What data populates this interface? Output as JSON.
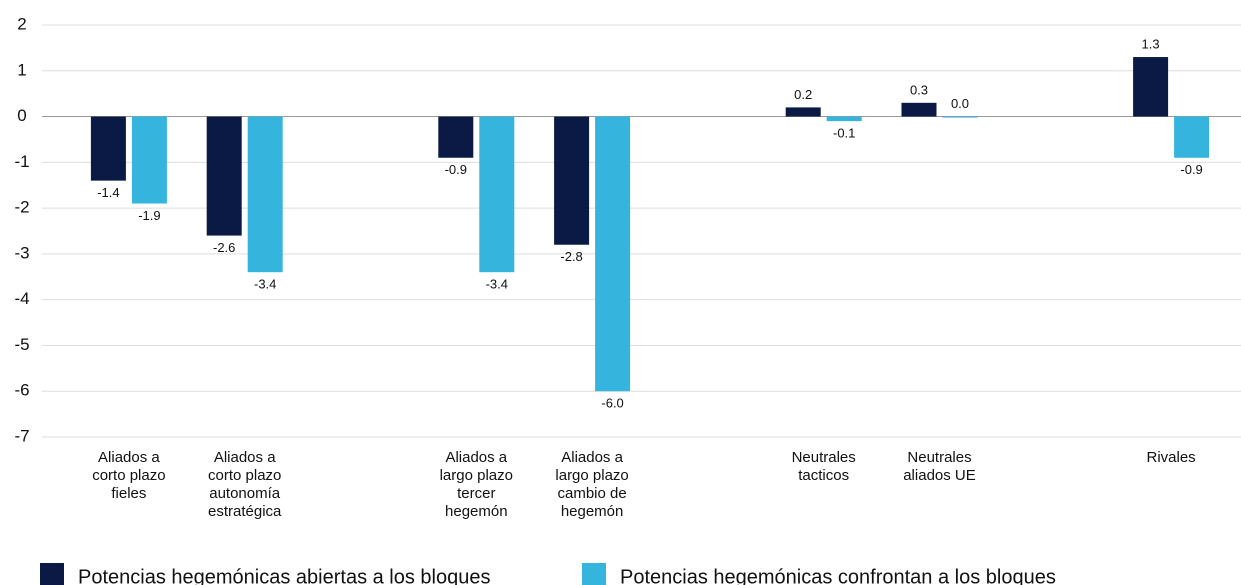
{
  "chart_data": {
    "type": "bar",
    "categories": [
      "Aliados a\ncorto plazo\nfieles",
      "Aliados a\ncorto plazo\nautonomía\nestratégica",
      null,
      "Aliados a\nlargo plazo\ntercer\nhegemón",
      "Aliados a\nlargo plazo\ncambio de\nhegemón",
      null,
      "Neutrales\ntacticos",
      "Neutrales\naliados UE",
      null,
      "Rivales"
    ],
    "series": [
      {
        "name": "Potencias hegemónicas abiertas a los bloques",
        "color": "#0b1a45",
        "values": [
          -1.4,
          -2.6,
          null,
          -0.9,
          -2.8,
          null,
          0.2,
          0.3,
          null,
          1.3
        ],
        "value_labels": [
          "-1.4",
          "-2.6",
          null,
          "-0.9",
          "-2.8",
          null,
          "0.2",
          "0.3",
          null,
          "1.3"
        ]
      },
      {
        "name": "Potencias hegemónicas confrontan a los bloques",
        "color": "#35b4de",
        "values": [
          -1.9,
          -3.4,
          null,
          -3.4,
          -6.0,
          null,
          -0.1,
          0.0,
          null,
          -0.9
        ],
        "value_labels": [
          "-1.9",
          "-3.4",
          null,
          "-3.4",
          "-6.0",
          null,
          "-0.1",
          "0.0",
          null,
          "-0.9"
        ]
      }
    ],
    "ylim": [
      -7,
      2
    ],
    "yticks": [
      -7,
      -6,
      -5,
      -4,
      -3,
      -2,
      -1,
      0,
      1,
      2
    ],
    "grid": true
  }
}
